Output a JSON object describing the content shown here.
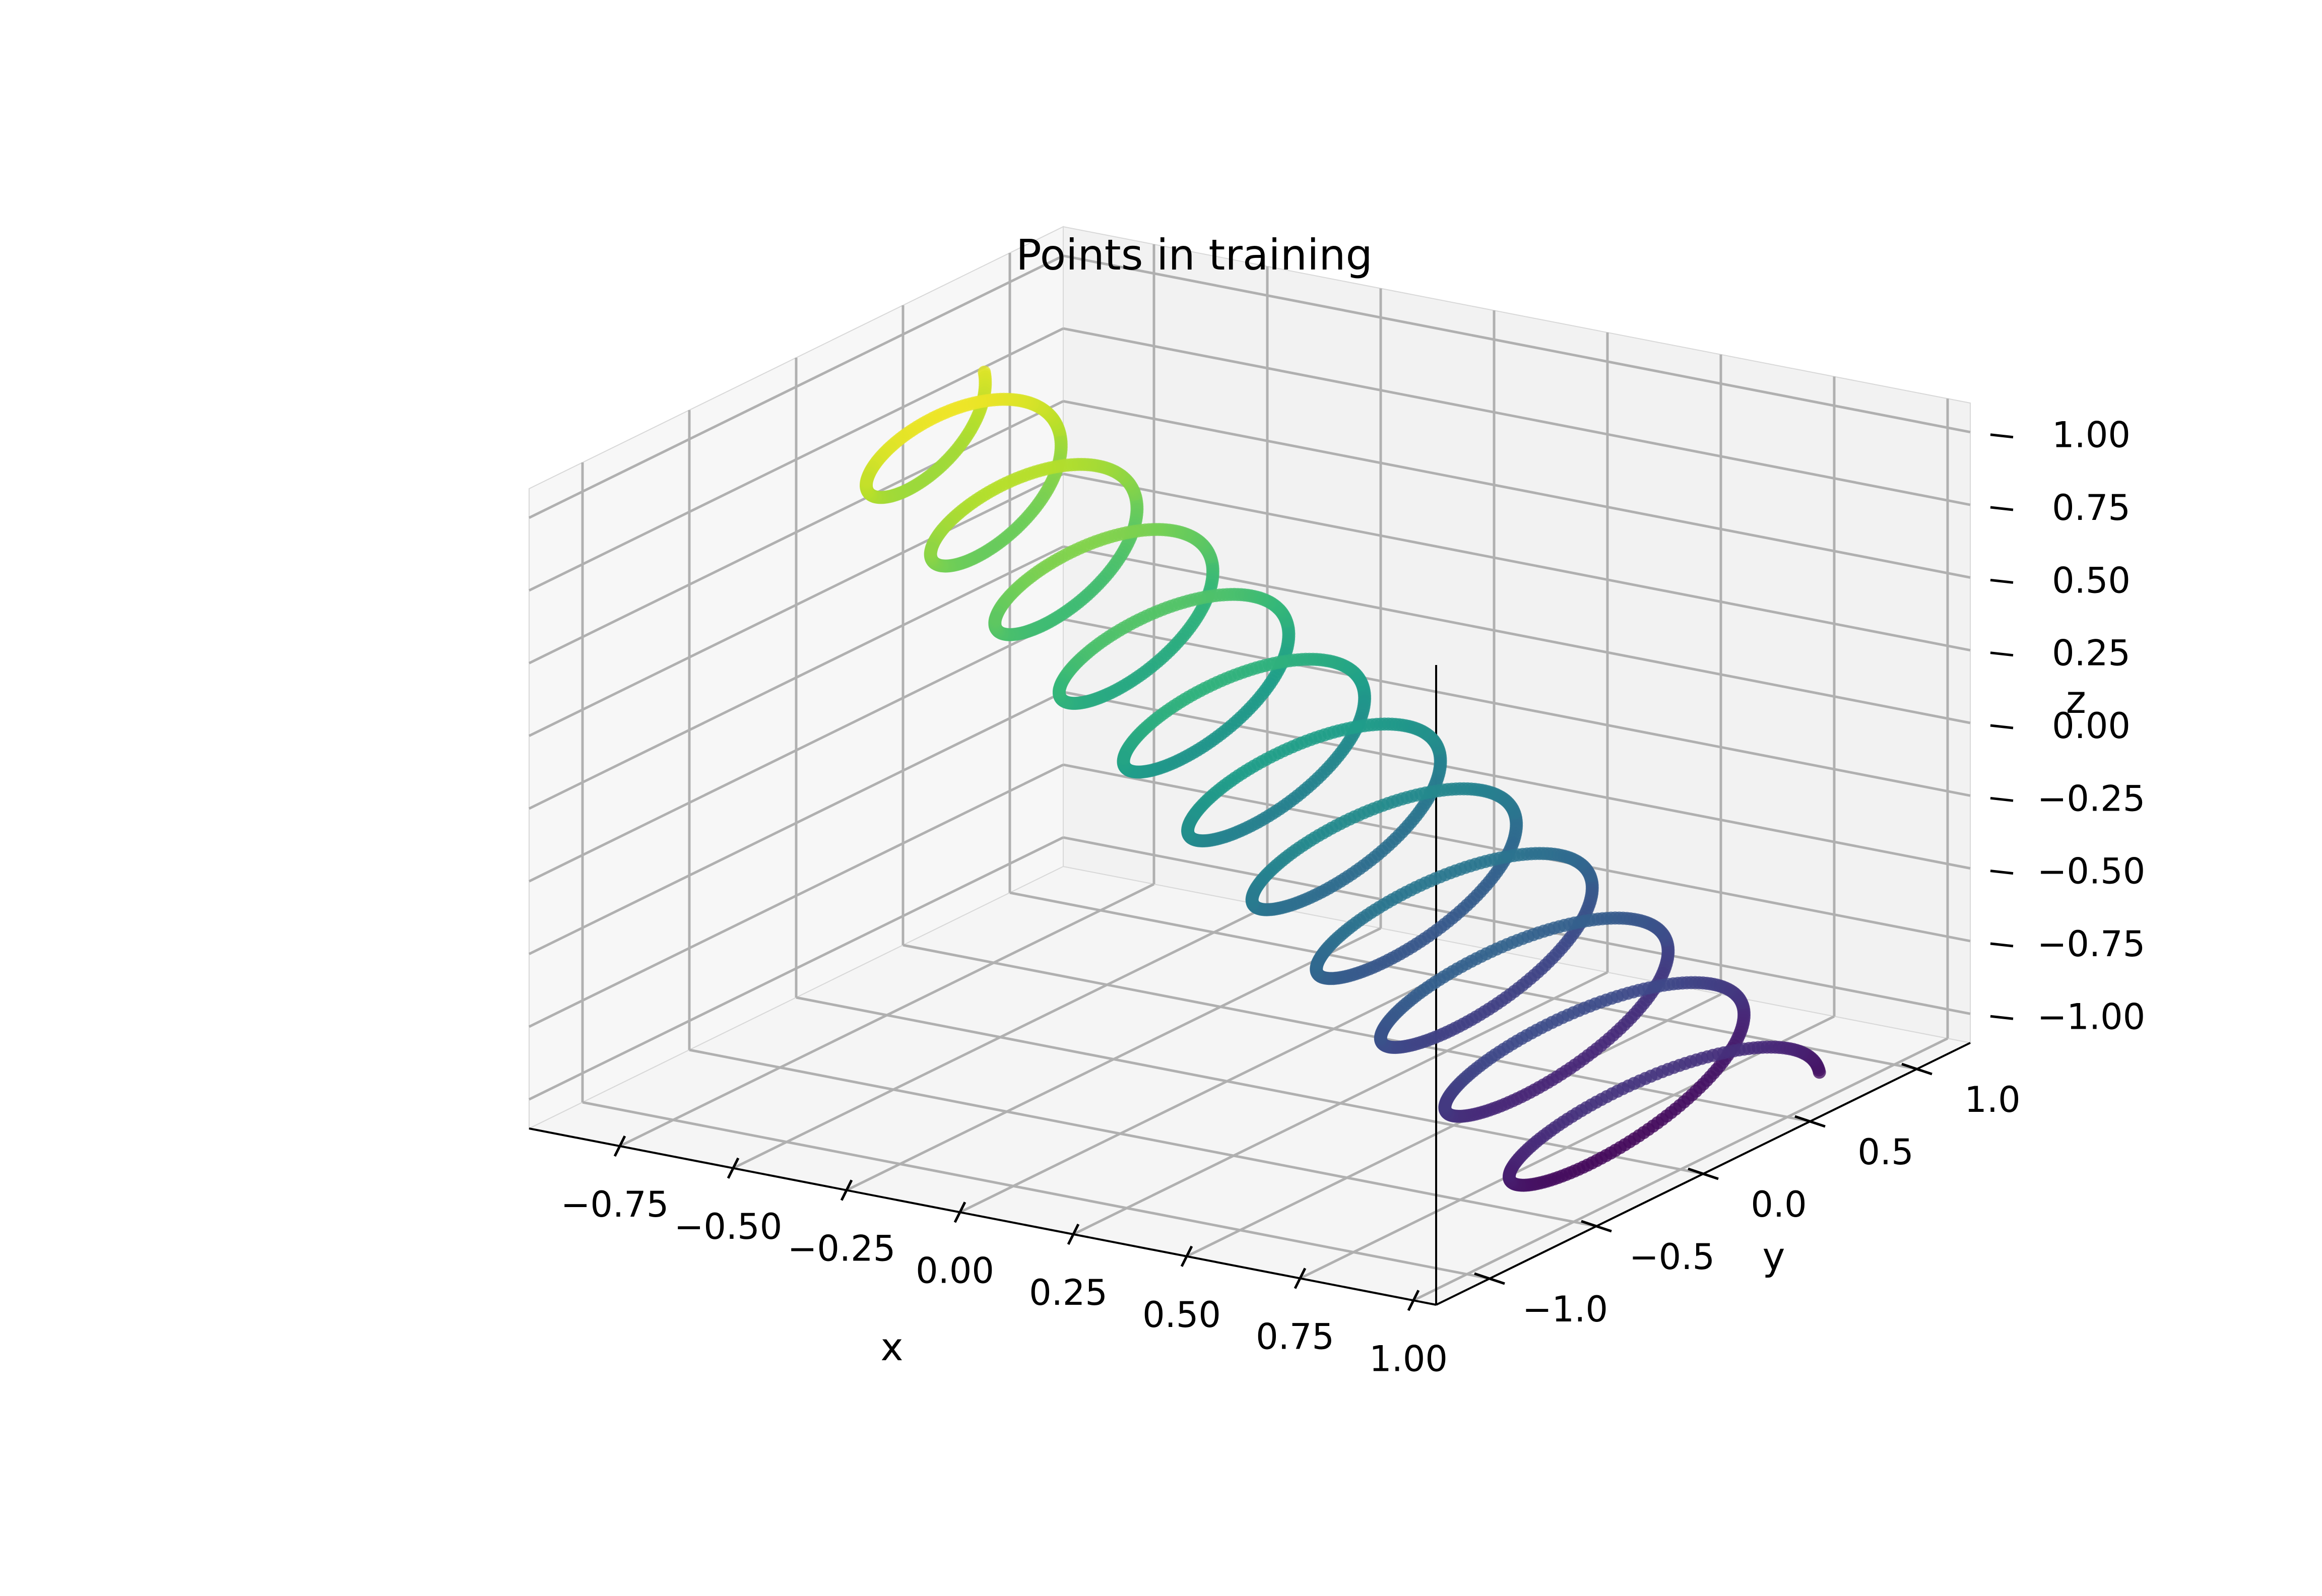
{
  "chart_data": {
    "type": "scatter",
    "projection": "3d",
    "title": "Points in training",
    "xlabel": "x",
    "ylabel": "y",
    "zlabel": "z",
    "xticks": [
      "−0.75",
      "−0.50",
      "−0.25",
      "0.00",
      "0.25",
      "0.50",
      "0.75",
      "1.00"
    ],
    "yticks": [
      "−1.0",
      "−0.5",
      "0.0",
      "0.5",
      "1.0"
    ],
    "zticks": [
      "−1.00",
      "−0.75",
      "−0.50",
      "−0.25",
      "0.00",
      "0.25",
      "0.50",
      "0.75",
      "1.00"
    ],
    "xlim": [
      -0.95,
      1.05
    ],
    "ylim": [
      -1.25,
      1.25
    ],
    "zlim": [
      -1.1,
      1.1
    ],
    "grid": true,
    "colormap": "viridis",
    "color_by": "z",
    "marker_alpha": 0.8,
    "description_of_points": "A helix-like spiral of scattered points: loops of radius ~0.5 around the x axis, with z rising from -1 to 1 as x decreases from 1 to -0.7",
    "series": [
      {
        "generator": "helix",
        "x_range": [
          1.0,
          -0.7
        ],
        "radius": 0.5,
        "loops": 11,
        "point_count": 1800
      }
    ]
  }
}
